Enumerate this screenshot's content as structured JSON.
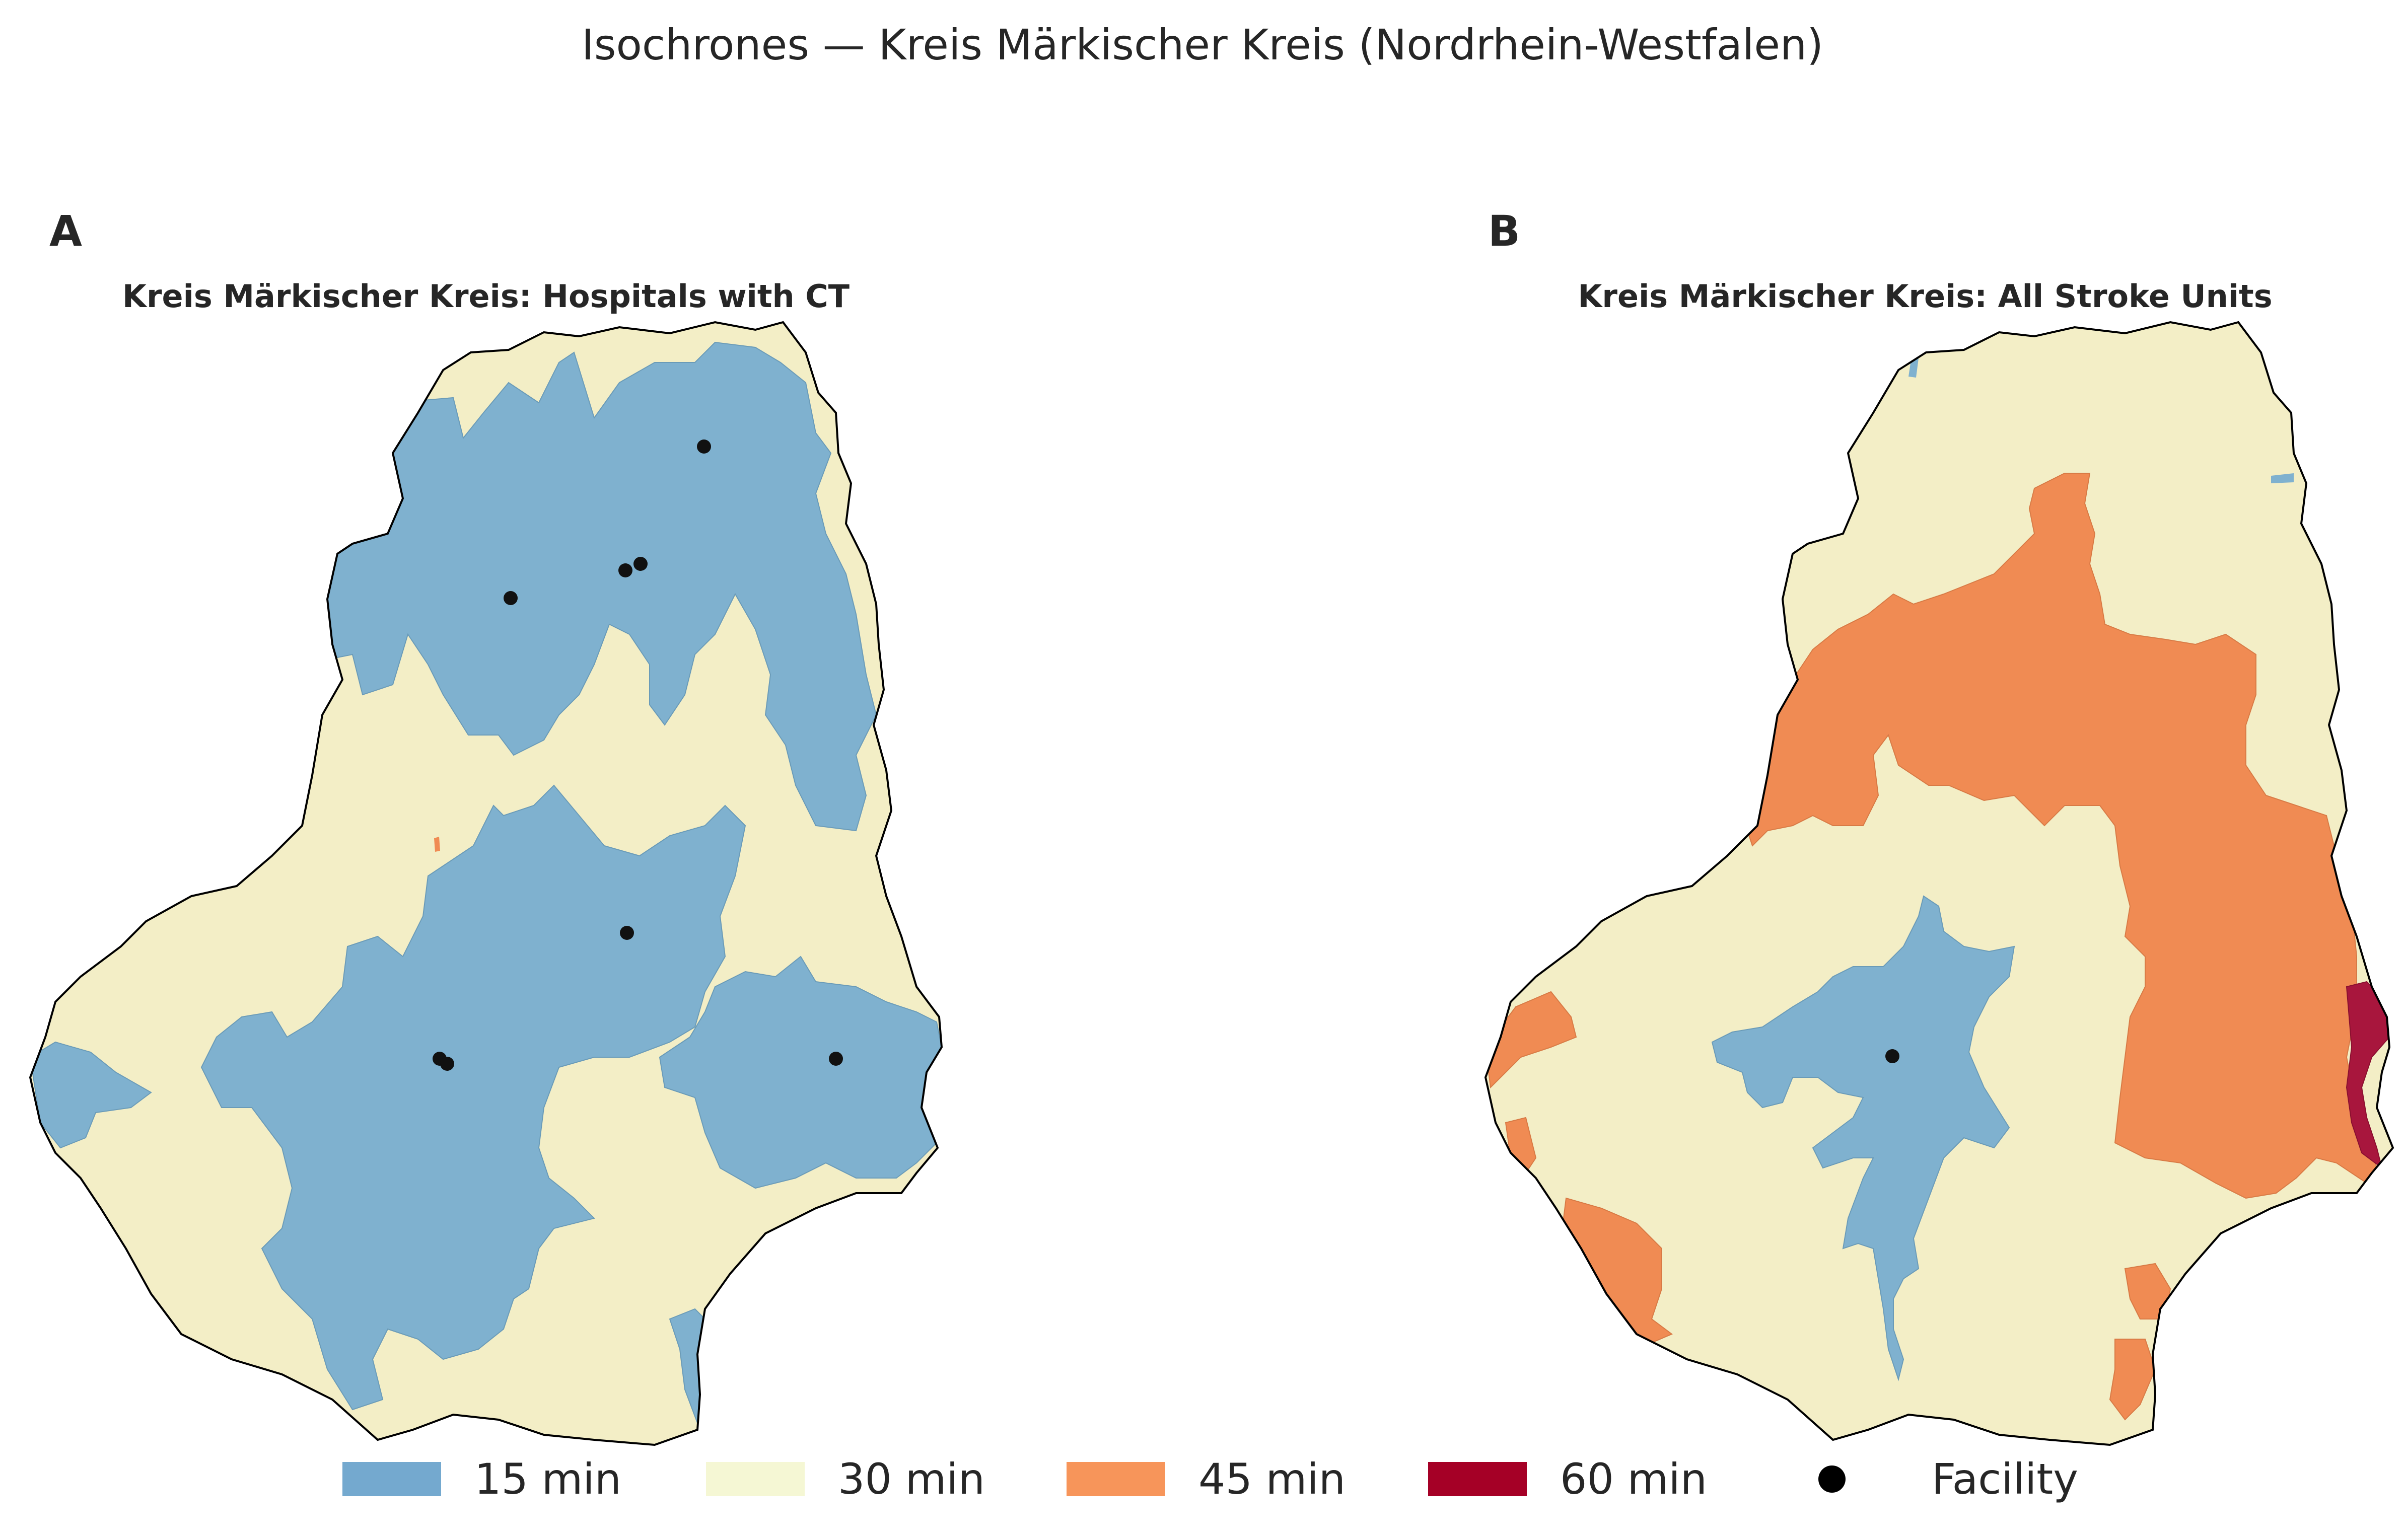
{
  "title": "Isochrones — Kreis Märkischer Kreis (Nordrhein-Westfalen)",
  "colors": {
    "min15": "#7fb1cf",
    "min30": "#f3eec6",
    "min45": "#f08b53",
    "min60": "#a8163d",
    "facility": "#111111",
    "outline": "#000000"
  },
  "panels": [
    {
      "letter": "A",
      "title": "Kreis Märkischer Kreis: Hospitals with CT",
      "facility_count": 8
    },
    {
      "letter": "B",
      "title": "Kreis Märkischer Kreis: All Stroke Units",
      "facility_count": 1
    }
  ],
  "legend": {
    "items": [
      {
        "label": "15 min",
        "color": "#74a9cf"
      },
      {
        "label": "30 min",
        "color": "#f5f7d4"
      },
      {
        "label": "45 min",
        "color": "#f7955a"
      },
      {
        "label": "60 min",
        "color": "#a50026"
      },
      {
        "label": "Facility",
        "color": "#000000",
        "marker": "dot"
      }
    ]
  }
}
